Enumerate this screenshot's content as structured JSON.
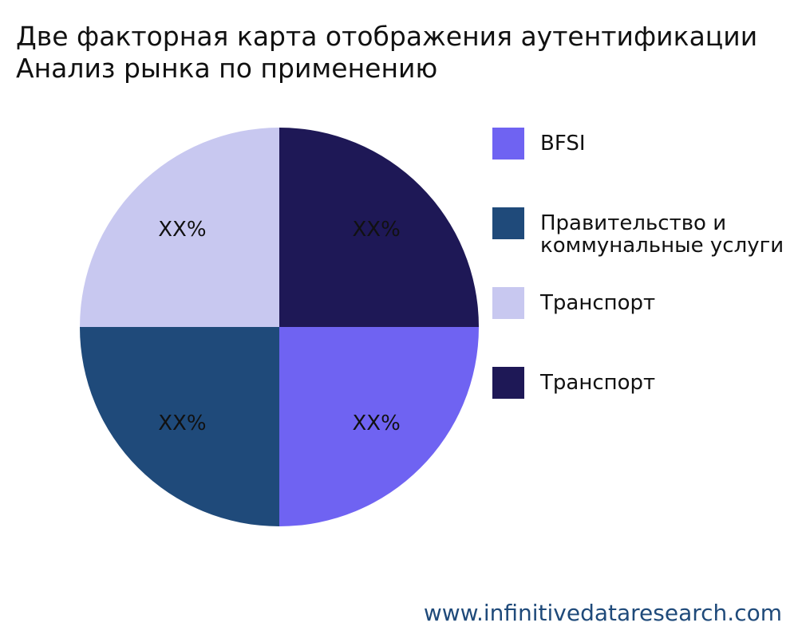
{
  "chart_data": {
    "type": "pie",
    "title": "Две факторная карта отображения аутентификации\nАнализ рынка по применению",
    "categories": [
      "BFSI",
      "Правительство и коммунальные услуги",
      "Транспорт",
      "Транспорт"
    ],
    "values": [
      25,
      25,
      25,
      25
    ],
    "value_labels": [
      "XX%",
      "XX%",
      "XX%",
      "XX%"
    ],
    "colors": [
      "#6f63f2",
      "#1f4a7a",
      "#c8c8f0",
      "#1e1856"
    ],
    "watermark": "www.infinitivedataresearch.com"
  }
}
